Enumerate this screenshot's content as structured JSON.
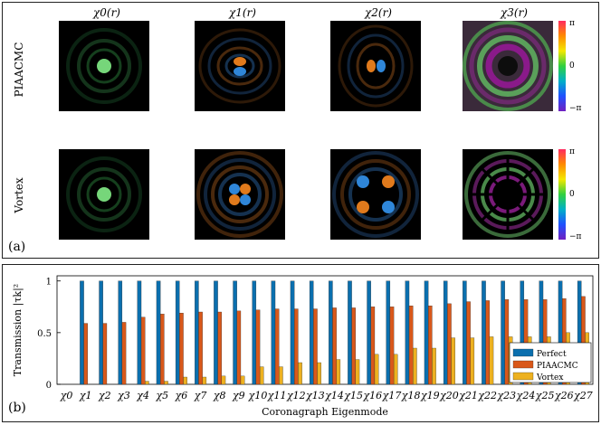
{
  "figure": {
    "panel_a_tag": "(a)",
    "panel_b_tag": "(b)",
    "columns": [
      "χ0(r)",
      "χ1(r)",
      "χ2(r)",
      "χ3(r)"
    ],
    "rows": [
      "PIAACMC",
      "Vortex"
    ],
    "colorbar_ticks": [
      "π",
      "0",
      "−π"
    ],
    "colors": {
      "perfect": "#0b6fae",
      "piaacmc": "#d9581a",
      "vortex": "#edb120"
    }
  },
  "chart_data": {
    "type": "bar",
    "title": "",
    "xlabel": "Coronagraph Eigenmode",
    "ylabel": "Transmission |τk|²",
    "ylim": [
      0,
      1.05
    ],
    "yticks": [
      "0",
      "0.5",
      "1"
    ],
    "categories": [
      "χ0",
      "χ1",
      "χ2",
      "χ3",
      "χ4",
      "χ5",
      "χ6",
      "χ7",
      "χ8",
      "χ9",
      "χ10",
      "χ11",
      "χ12",
      "χ13",
      "χ14",
      "χ15",
      "χ16",
      "χ17",
      "χ18",
      "χ19",
      "χ20",
      "χ21",
      "χ22",
      "χ23",
      "χ24",
      "χ25",
      "χ26",
      "χ27"
    ],
    "series": [
      {
        "name": "Perfect",
        "color": "#0b6fae",
        "values": [
          0,
          1,
          1,
          1,
          1,
          1,
          1,
          1,
          1,
          1,
          1,
          1,
          1,
          1,
          1,
          1,
          1,
          1,
          1,
          1,
          1,
          1,
          1,
          1,
          1,
          1,
          1,
          1
        ]
      },
      {
        "name": "PIAACMC",
        "color": "#d9581a",
        "values": [
          0,
          0.59,
          0.59,
          0.6,
          0.65,
          0.68,
          0.69,
          0.7,
          0.7,
          0.71,
          0.72,
          0.73,
          0.73,
          0.73,
          0.74,
          0.74,
          0.75,
          0.75,
          0.76,
          0.76,
          0.78,
          0.8,
          0.81,
          0.82,
          0.82,
          0.82,
          0.83,
          0.85
        ]
      },
      {
        "name": "Vortex",
        "color": "#edb120",
        "values": [
          0,
          0,
          0,
          0,
          0.03,
          0.03,
          0.07,
          0.07,
          0.08,
          0.08,
          0.17,
          0.17,
          0.21,
          0.21,
          0.24,
          0.24,
          0.29,
          0.29,
          0.35,
          0.35,
          0.45,
          0.45,
          0.46,
          0.46,
          0.46,
          0.46,
          0.5,
          0.5
        ]
      }
    ],
    "legend_position": "bottom-right"
  }
}
